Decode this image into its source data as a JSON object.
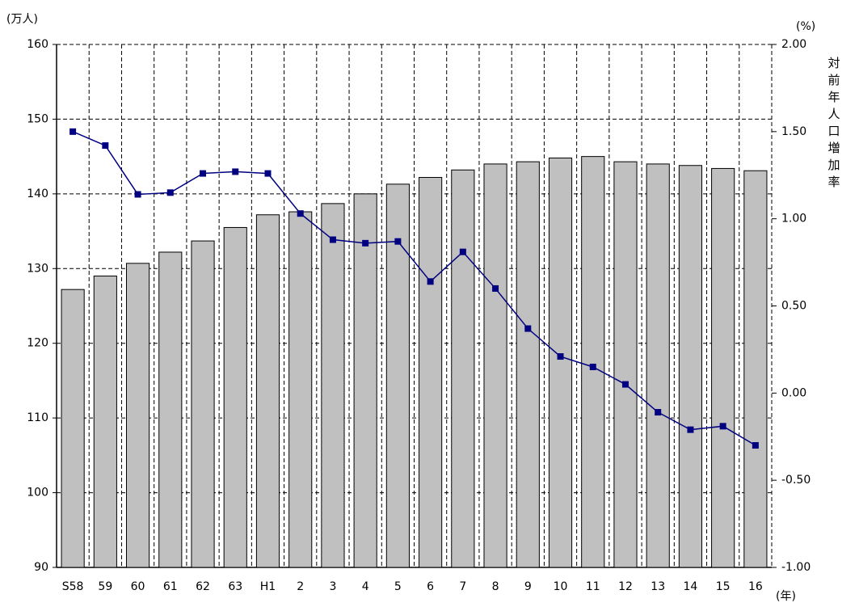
{
  "chart_data": {
    "type": "bar_line",
    "y_label": "(万人)",
    "y2_label": "(%)",
    "y2_title": "対前年人口増加率",
    "x_label": "(年)",
    "categories": [
      "S58",
      "59",
      "60",
      "61",
      "62",
      "63",
      "H1",
      "2",
      "3",
      "4",
      "5",
      "6",
      "7",
      "8",
      "9",
      "10",
      "11",
      "12",
      "13",
      "14",
      "15",
      "16"
    ],
    "series": [
      {
        "type": "bar",
        "color": "#c0c0c0",
        "axis": "y",
        "values": [
          127.2,
          129.0,
          130.7,
          132.2,
          133.7,
          135.5,
          137.2,
          137.6,
          138.7,
          140.0,
          141.3,
          142.2,
          143.2,
          144.0,
          144.3,
          144.8,
          145.0,
          144.3,
          144.0,
          143.8,
          143.4,
          143.1
        ]
      },
      {
        "type": "line",
        "color": "#000080",
        "axis": "y2",
        "values": [
          1.5,
          1.42,
          1.14,
          1.15,
          1.26,
          1.27,
          1.26,
          1.03,
          0.88,
          0.86,
          0.87,
          0.64,
          0.81,
          0.6,
          0.37,
          0.21,
          0.15,
          0.05,
          -0.11,
          -0.21,
          -0.19,
          -0.3
        ]
      }
    ],
    "ylim": [
      90,
      160
    ],
    "yticks": [
      90,
      100,
      110,
      120,
      130,
      140,
      150,
      160
    ],
    "y2lim": [
      -1.0,
      2.0
    ],
    "y2ticks": [
      {
        "value": -1.0,
        "label": "-1.00"
      },
      {
        "value": -0.5,
        "label": "-0.50"
      },
      {
        "value": 0,
        "label": "0.00"
      },
      {
        "value": 0.5,
        "label": "0.50"
      },
      {
        "value": 1.0,
        "label": "1.00"
      },
      {
        "value": 1.5,
        "label": "1.50"
      },
      {
        "value": 2.0,
        "label": "2.00"
      }
    ],
    "grid": true
  }
}
